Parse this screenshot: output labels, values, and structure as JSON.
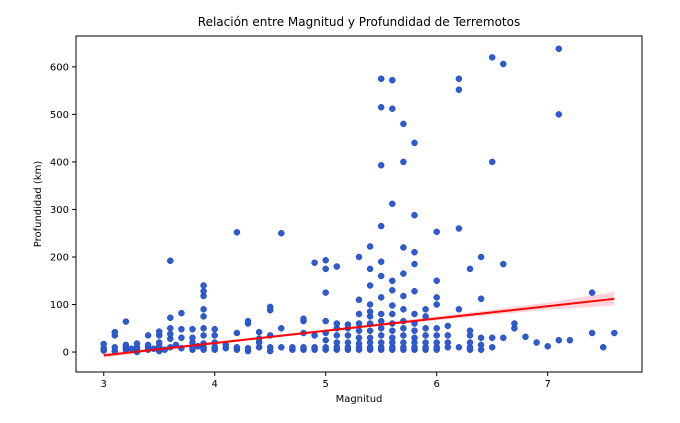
{
  "chart_data": {
    "type": "scatter",
    "title": "Relación entre Magnitud y Profundidad de Terremotos",
    "xlabel": "Magnitud",
    "ylabel": "Profundidad (km)",
    "xlim": [
      2.75,
      7.85
    ],
    "ylim": [
      -42,
      665
    ],
    "x_ticks": [
      3,
      4,
      5,
      6,
      7
    ],
    "y_ticks": [
      0,
      100,
      200,
      300,
      400,
      500,
      600
    ],
    "grid": false,
    "colors": {
      "points": "#2d5bd6",
      "point_edge": "#1f3f9a",
      "regression_line": "#ff0000",
      "confidence_band": "#ffb6c1"
    },
    "points": [
      [
        3.0,
        3
      ],
      [
        3.0,
        8
      ],
      [
        3.0,
        17
      ],
      [
        3.1,
        2
      ],
      [
        3.1,
        10
      ],
      [
        3.1,
        35
      ],
      [
        3.1,
        42
      ],
      [
        3.2,
        5
      ],
      [
        3.2,
        10
      ],
      [
        3.2,
        15
      ],
      [
        3.2,
        64
      ],
      [
        3.25,
        7
      ],
      [
        3.3,
        0
      ],
      [
        3.3,
        5
      ],
      [
        3.3,
        10
      ],
      [
        3.3,
        18
      ],
      [
        3.4,
        5
      ],
      [
        3.4,
        10
      ],
      [
        3.4,
        15
      ],
      [
        3.4,
        35
      ],
      [
        3.45,
        7
      ],
      [
        3.5,
        2
      ],
      [
        3.5,
        8
      ],
      [
        3.5,
        12
      ],
      [
        3.5,
        20
      ],
      [
        3.5,
        35
      ],
      [
        3.5,
        43
      ],
      [
        3.55,
        5
      ],
      [
        3.6,
        10
      ],
      [
        3.6,
        28
      ],
      [
        3.6,
        38
      ],
      [
        3.6,
        50
      ],
      [
        3.6,
        72
      ],
      [
        3.6,
        192
      ],
      [
        3.65,
        15
      ],
      [
        3.7,
        8
      ],
      [
        3.7,
        30
      ],
      [
        3.7,
        48
      ],
      [
        3.7,
        82
      ],
      [
        3.8,
        5
      ],
      [
        3.8,
        10
      ],
      [
        3.8,
        20
      ],
      [
        3.8,
        30
      ],
      [
        3.8,
        48
      ],
      [
        3.85,
        12
      ],
      [
        3.9,
        5
      ],
      [
        3.9,
        10
      ],
      [
        3.9,
        18
      ],
      [
        3.9,
        35
      ],
      [
        3.9,
        50
      ],
      [
        3.9,
        75
      ],
      [
        3.9,
        90
      ],
      [
        3.9,
        118
      ],
      [
        3.9,
        128
      ],
      [
        3.9,
        140
      ],
      [
        4.0,
        5
      ],
      [
        4.0,
        10
      ],
      [
        4.0,
        20
      ],
      [
        4.0,
        35
      ],
      [
        4.0,
        48
      ],
      [
        4.1,
        8
      ],
      [
        4.1,
        15
      ],
      [
        4.2,
        5
      ],
      [
        4.2,
        10
      ],
      [
        4.2,
        40
      ],
      [
        4.2,
        252
      ],
      [
        4.3,
        2
      ],
      [
        4.3,
        8
      ],
      [
        4.3,
        60
      ],
      [
        4.3,
        65
      ],
      [
        4.4,
        10
      ],
      [
        4.4,
        20
      ],
      [
        4.4,
        28
      ],
      [
        4.4,
        42
      ],
      [
        4.5,
        2
      ],
      [
        4.5,
        10
      ],
      [
        4.5,
        35
      ],
      [
        4.5,
        88
      ],
      [
        4.5,
        95
      ],
      [
        4.6,
        10
      ],
      [
        4.6,
        50
      ],
      [
        4.6,
        250
      ],
      [
        4.7,
        5
      ],
      [
        4.7,
        10
      ],
      [
        4.8,
        5
      ],
      [
        4.8,
        10
      ],
      [
        4.8,
        40
      ],
      [
        4.8,
        65
      ],
      [
        4.8,
        70
      ],
      [
        4.9,
        5
      ],
      [
        4.9,
        10
      ],
      [
        4.9,
        35
      ],
      [
        4.9,
        188
      ],
      [
        5.0,
        5
      ],
      [
        5.0,
        10
      ],
      [
        5.0,
        25
      ],
      [
        5.0,
        40
      ],
      [
        5.0,
        65
      ],
      [
        5.0,
        125
      ],
      [
        5.0,
        175
      ],
      [
        5.0,
        193
      ],
      [
        5.1,
        5
      ],
      [
        5.1,
        10
      ],
      [
        5.1,
        20
      ],
      [
        5.1,
        35
      ],
      [
        5.1,
        50
      ],
      [
        5.1,
        60
      ],
      [
        5.1,
        180
      ],
      [
        5.2,
        5
      ],
      [
        5.2,
        10
      ],
      [
        5.2,
        20
      ],
      [
        5.2,
        35
      ],
      [
        5.2,
        50
      ],
      [
        5.2,
        58
      ],
      [
        5.3,
        5
      ],
      [
        5.3,
        10
      ],
      [
        5.3,
        18
      ],
      [
        5.3,
        30
      ],
      [
        5.3,
        45
      ],
      [
        5.3,
        60
      ],
      [
        5.3,
        80
      ],
      [
        5.3,
        110
      ],
      [
        5.3,
        200
      ],
      [
        5.4,
        5
      ],
      [
        5.4,
        10
      ],
      [
        5.4,
        20
      ],
      [
        5.4,
        30
      ],
      [
        5.4,
        45
      ],
      [
        5.4,
        60
      ],
      [
        5.4,
        75
      ],
      [
        5.4,
        85
      ],
      [
        5.4,
        100
      ],
      [
        5.4,
        140
      ],
      [
        5.4,
        175
      ],
      [
        5.4,
        222
      ],
      [
        5.5,
        5
      ],
      [
        5.5,
        10
      ],
      [
        5.5,
        20
      ],
      [
        5.5,
        35
      ],
      [
        5.5,
        50
      ],
      [
        5.5,
        65
      ],
      [
        5.5,
        80
      ],
      [
        5.5,
        115
      ],
      [
        5.5,
        160
      ],
      [
        5.5,
        190
      ],
      [
        5.5,
        265
      ],
      [
        5.5,
        393
      ],
      [
        5.5,
        515
      ],
      [
        5.5,
        575
      ],
      [
        5.6,
        5
      ],
      [
        5.6,
        10
      ],
      [
        5.6,
        20
      ],
      [
        5.6,
        30
      ],
      [
        5.6,
        45
      ],
      [
        5.6,
        60
      ],
      [
        5.6,
        80
      ],
      [
        5.6,
        98
      ],
      [
        5.6,
        130
      ],
      [
        5.6,
        150
      ],
      [
        5.6,
        312
      ],
      [
        5.6,
        512
      ],
      [
        5.6,
        572
      ],
      [
        5.7,
        5
      ],
      [
        5.7,
        10
      ],
      [
        5.7,
        20
      ],
      [
        5.7,
        35
      ],
      [
        5.7,
        50
      ],
      [
        5.7,
        65
      ],
      [
        5.7,
        90
      ],
      [
        5.7,
        118
      ],
      [
        5.7,
        165
      ],
      [
        5.7,
        220
      ],
      [
        5.7,
        400
      ],
      [
        5.7,
        480
      ],
      [
        5.8,
        5
      ],
      [
        5.8,
        10
      ],
      [
        5.8,
        20
      ],
      [
        5.8,
        30
      ],
      [
        5.8,
        45
      ],
      [
        5.8,
        60
      ],
      [
        5.8,
        80
      ],
      [
        5.8,
        128
      ],
      [
        5.8,
        185
      ],
      [
        5.8,
        210
      ],
      [
        5.8,
        288
      ],
      [
        5.8,
        440
      ],
      [
        5.9,
        5
      ],
      [
        5.9,
        10
      ],
      [
        5.9,
        20
      ],
      [
        5.9,
        35
      ],
      [
        5.9,
        50
      ],
      [
        5.9,
        75
      ],
      [
        5.9,
        90
      ],
      [
        6.0,
        5
      ],
      [
        6.0,
        10
      ],
      [
        6.0,
        20
      ],
      [
        6.0,
        35
      ],
      [
        6.0,
        50
      ],
      [
        6.0,
        100
      ],
      [
        6.0,
        115
      ],
      [
        6.0,
        150
      ],
      [
        6.0,
        253
      ],
      [
        6.1,
        10
      ],
      [
        6.1,
        20
      ],
      [
        6.1,
        35
      ],
      [
        6.1,
        55
      ],
      [
        6.2,
        10
      ],
      [
        6.2,
        90
      ],
      [
        6.2,
        260
      ],
      [
        6.2,
        552
      ],
      [
        6.2,
        575
      ],
      [
        6.3,
        5
      ],
      [
        6.3,
        10
      ],
      [
        6.3,
        20
      ],
      [
        6.3,
        35
      ],
      [
        6.3,
        45
      ],
      [
        6.3,
        175
      ],
      [
        6.4,
        5
      ],
      [
        6.4,
        15
      ],
      [
        6.4,
        30
      ],
      [
        6.4,
        112
      ],
      [
        6.4,
        200
      ],
      [
        6.5,
        10
      ],
      [
        6.5,
        30
      ],
      [
        6.5,
        400
      ],
      [
        6.5,
        620
      ],
      [
        6.6,
        30
      ],
      [
        6.6,
        185
      ],
      [
        6.6,
        606
      ],
      [
        6.7,
        50
      ],
      [
        6.7,
        60
      ],
      [
        6.8,
        32
      ],
      [
        6.9,
        20
      ],
      [
        7.0,
        12
      ],
      [
        7.1,
        25
      ],
      [
        7.1,
        500
      ],
      [
        7.1,
        638
      ],
      [
        7.2,
        25
      ],
      [
        7.4,
        40
      ],
      [
        7.4,
        125
      ],
      [
        7.5,
        10
      ],
      [
        7.6,
        40
      ]
    ],
    "regression": {
      "x": [
        3.0,
        7.6
      ],
      "y": [
        -7,
        112
      ]
    },
    "confidence_band": {
      "x": [
        3.0,
        3.5,
        4.0,
        4.5,
        5.0,
        5.5,
        6.0,
        6.5,
        7.0,
        7.6
      ],
      "lower": [
        -12,
        3,
        16,
        30,
        43,
        55,
        67,
        78,
        89,
        98
      ],
      "upper": [
        -2,
        10,
        22,
        35,
        48,
        62,
        75,
        89,
        104,
        127
      ]
    }
  }
}
